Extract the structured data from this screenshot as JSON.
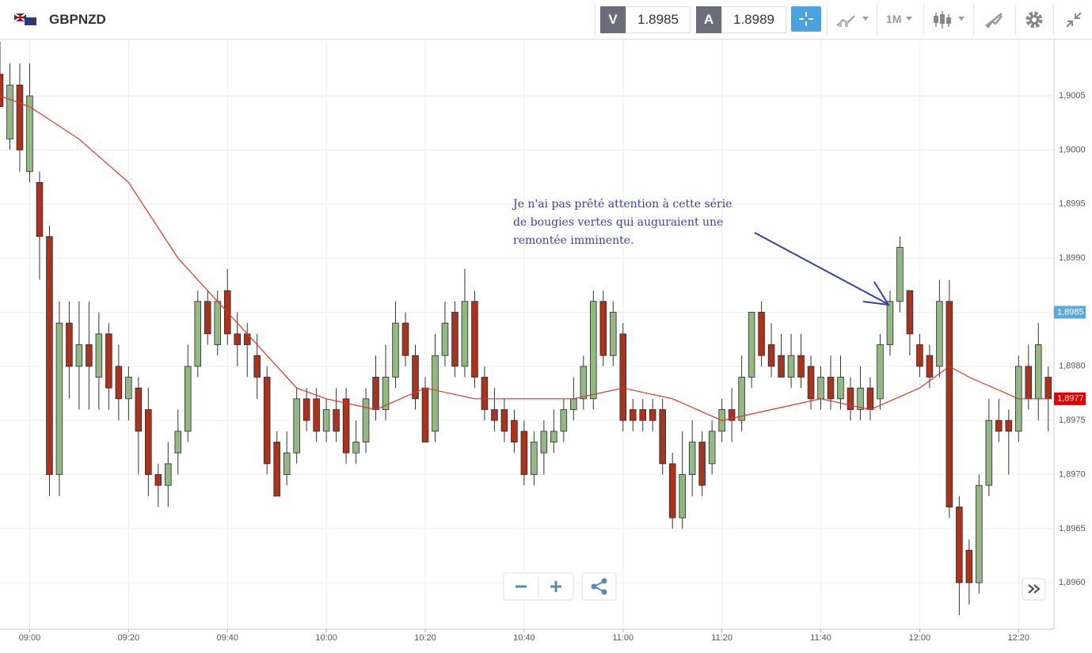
{
  "toolbar": {
    "symbol": "GBPNZD",
    "sell_label": "V",
    "sell_price": 1.8985,
    "buy_label": "A",
    "buy_price": 1.8989,
    "timeframe": "1M"
  },
  "chart_data": {
    "type": "candlestick",
    "x": [
      "08:54",
      "08:56",
      "08:58",
      "09:00",
      "09:02",
      "09:04",
      "09:06",
      "09:08",
      "09:10",
      "09:12",
      "09:14",
      "09:16",
      "09:18",
      "09:20",
      "09:22",
      "09:24",
      "09:26",
      "09:28",
      "09:30",
      "09:32",
      "09:34",
      "09:36",
      "09:38",
      "09:40",
      "09:42",
      "09:44",
      "09:46",
      "09:48",
      "09:50",
      "09:52",
      "09:54",
      "09:56",
      "09:58",
      "10:00",
      "10:02",
      "10:04",
      "10:06",
      "10:08",
      "10:10",
      "10:12",
      "10:14",
      "10:16",
      "10:18",
      "10:20",
      "10:22",
      "10:24",
      "10:26",
      "10:28",
      "10:30",
      "10:32",
      "10:34",
      "10:36",
      "10:38",
      "10:40",
      "10:42",
      "10:44",
      "10:46",
      "10:48",
      "10:50",
      "10:52",
      "10:54",
      "10:56",
      "10:58",
      "11:00",
      "11:02",
      "11:04",
      "11:06",
      "11:08",
      "11:10",
      "11:12",
      "11:14",
      "11:16",
      "11:18",
      "11:20",
      "11:22",
      "11:24",
      "11:26",
      "11:28",
      "11:30",
      "11:32",
      "11:34",
      "11:36",
      "11:38",
      "11:40",
      "11:42",
      "11:44",
      "11:46",
      "11:48",
      "11:50",
      "11:52",
      "11:54",
      "11:56",
      "11:58",
      "12:00",
      "12:02",
      "12:04",
      "12:06",
      "12:08",
      "12:10",
      "12:12",
      "12:14",
      "12:16",
      "12:18",
      "12:20",
      "12:22",
      "12:24",
      "12:26"
    ],
    "open": [
      1.9007,
      1.9001,
      1.9006,
      1.8998,
      1.8997,
      1.8992,
      1.897,
      1.8984,
      1.898,
      1.8982,
      1.8979,
      1.8983,
      1.898,
      1.8977,
      1.8978,
      1.8976,
      1.897,
      1.8969,
      1.8972,
      1.8974,
      1.898,
      1.8986,
      1.8982,
      1.8987,
      1.8983,
      1.8983,
      1.8981,
      1.8979,
      1.8973,
      1.897,
      1.8972,
      1.8977,
      1.8977,
      1.8974,
      1.8976,
      1.8977,
      1.8972,
      1.8973,
      1.8979,
      1.8976,
      1.8979,
      1.8984,
      1.8981,
      1.8978,
      1.8974,
      1.8981,
      1.8985,
      1.898,
      1.8986,
      1.8979,
      1.8976,
      1.8976,
      1.8975,
      1.8974,
      1.897,
      1.8972,
      1.8973,
      1.8974,
      1.8976,
      1.8977,
      1.8977,
      1.8986,
      1.8981,
      1.8983,
      1.8976,
      1.8976,
      1.8976,
      1.8976,
      1.8971,
      1.8966,
      1.897,
      1.8973,
      1.8971,
      1.8974,
      1.8976,
      1.8975,
      1.8979,
      1.8985,
      1.8982,
      1.8981,
      1.8979,
      1.8981,
      1.898,
      1.8977,
      1.8979,
      1.8977,
      1.8978,
      1.8976,
      1.8978,
      1.8977,
      1.8982,
      1.8986,
      1.8987,
      1.8982,
      1.8981,
      1.898,
      1.8986,
      1.8967,
      1.8963,
      1.896,
      1.8969,
      1.8975,
      1.8975,
      1.8974,
      1.898,
      1.8977,
      1.8979
    ],
    "high": [
      1.901,
      1.9008,
      1.9008,
      1.9008,
      1.8998,
      1.8993,
      1.8986,
      1.8986,
      1.8986,
      1.8986,
      1.8985,
      1.8984,
      1.8982,
      1.898,
      1.8979,
      1.8978,
      1.8971,
      1.8973,
      1.8976,
      1.8982,
      1.8987,
      1.8987,
      1.8987,
      1.8989,
      1.8985,
      1.8984,
      1.8983,
      1.898,
      1.8974,
      1.8974,
      1.8978,
      1.8978,
      1.8978,
      1.8977,
      1.8978,
      1.8978,
      1.8975,
      1.8978,
      1.8981,
      1.8982,
      1.8986,
      1.8985,
      1.8982,
      1.8979,
      1.8983,
      1.8986,
      1.8986,
      1.8989,
      1.8987,
      1.898,
      1.8978,
      1.8977,
      1.8976,
      1.8975,
      1.8974,
      1.8975,
      1.8976,
      1.8977,
      1.8979,
      1.8981,
      1.8987,
      1.8987,
      1.8986,
      1.8984,
      1.8977,
      1.8977,
      1.8977,
      1.8977,
      1.8972,
      1.8974,
      1.8975,
      1.8974,
      1.8975,
      1.8977,
      1.8978,
      1.8981,
      1.8985,
      1.8986,
      1.8984,
      1.8983,
      1.8983,
      1.8983,
      1.8981,
      1.898,
      1.8981,
      1.8981,
      1.8979,
      1.898,
      1.8979,
      1.8983,
      1.8987,
      1.8992,
      1.8987,
      1.8983,
      1.8982,
      1.8988,
      1.8988,
      1.8968,
      1.8964,
      1.897,
      1.8977,
      1.8977,
      1.8976,
      1.8981,
      1.8982,
      1.8984,
      1.898
    ],
    "low": [
      1.9004,
      1.9,
      1.8998,
      1.8997,
      1.8988,
      1.8968,
      1.8968,
      1.8977,
      1.8976,
      1.8976,
      1.8976,
      1.8976,
      1.8975,
      1.8975,
      1.897,
      1.8968,
      1.8967,
      1.8967,
      1.897,
      1.8973,
      1.8979,
      1.8982,
      1.8981,
      1.8982,
      1.898,
      1.8979,
      1.8977,
      1.897,
      1.8968,
      1.8969,
      1.8971,
      1.8974,
      1.8973,
      1.8973,
      1.8973,
      1.8971,
      1.8971,
      1.8972,
      1.8975,
      1.8975,
      1.8978,
      1.898,
      1.8976,
      1.8973,
      1.8973,
      1.898,
      1.8979,
      1.8979,
      1.8978,
      1.8975,
      1.8974,
      1.8973,
      1.8972,
      1.8969,
      1.8969,
      1.897,
      1.8972,
      1.8973,
      1.8975,
      1.8976,
      1.8976,
      1.898,
      1.898,
      1.8974,
      1.8974,
      1.8974,
      1.8974,
      1.897,
      1.8965,
      1.8965,
      1.8968,
      1.8968,
      1.897,
      1.8973,
      1.8973,
      1.8974,
      1.8978,
      1.898,
      1.8979,
      1.8979,
      1.8978,
      1.8978,
      1.8976,
      1.8976,
      1.8976,
      1.8976,
      1.8975,
      1.8975,
      1.8975,
      1.8976,
      1.8981,
      1.8985,
      1.8981,
      1.8979,
      1.8978,
      1.8979,
      1.8966,
      1.8957,
      1.8958,
      1.8959,
      1.8968,
      1.8973,
      1.897,
      1.8973,
      1.8976,
      1.8975,
      1.8974
    ],
    "close": [
      1.9004,
      1.9006,
      1.9,
      1.9005,
      1.8992,
      1.897,
      1.8984,
      1.898,
      1.8982,
      1.898,
      1.8983,
      1.8978,
      1.8977,
      1.8979,
      1.8974,
      1.897,
      1.8969,
      1.8971,
      1.8974,
      1.898,
      1.8986,
      1.8983,
      1.8986,
      1.8983,
      1.8982,
      1.8982,
      1.8979,
      1.8971,
      1.8968,
      1.8972,
      1.8977,
      1.8975,
      1.8974,
      1.8976,
      1.8974,
      1.8972,
      1.8973,
      1.8977,
      1.8976,
      1.8979,
      1.8984,
      1.8981,
      1.8977,
      1.8973,
      1.8981,
      1.8984,
      1.898,
      1.8986,
      1.8979,
      1.8976,
      1.8975,
      1.8974,
      1.8973,
      1.897,
      1.8973,
      1.8974,
      1.8974,
      1.8976,
      1.8977,
      1.898,
      1.8986,
      1.8981,
      1.8985,
      1.8975,
      1.8975,
      1.8975,
      1.8975,
      1.8971,
      1.8966,
      1.897,
      1.8973,
      1.8969,
      1.8974,
      1.8976,
      1.8975,
      1.8979,
      1.8985,
      1.8981,
      1.898,
      1.8979,
      1.8981,
      1.8979,
      1.8977,
      1.8979,
      1.8977,
      1.8979,
      1.8976,
      1.8978,
      1.8976,
      1.8982,
      1.8986,
      1.8991,
      1.8983,
      1.898,
      1.8979,
      1.8986,
      1.8967,
      1.896,
      1.896,
      1.8969,
      1.8975,
      1.8974,
      1.8974,
      1.898,
      1.8977,
      1.8982,
      1.8977
    ],
    "up_color": "#93b883",
    "down_color": "#a8331f",
    "moving_average": {
      "color": "#e0342a",
      "x": [
        "08:54",
        "09:00",
        "09:10",
        "09:20",
        "09:30",
        "09:40",
        "09:50",
        "09:54",
        "10:00",
        "10:10",
        "10:20",
        "10:30",
        "10:40",
        "10:50",
        "11:00",
        "11:10",
        "11:20",
        "11:30",
        "11:40",
        "11:50",
        "12:00",
        "12:06",
        "12:10",
        "12:20",
        "12:26"
      ],
      "values": [
        1.9005,
        1.9004,
        1.9001,
        1.8997,
        1.899,
        1.8985,
        1.898,
        1.8978,
        1.8977,
        1.8976,
        1.8978,
        1.8977,
        1.8977,
        1.8977,
        1.8978,
        1.8977,
        1.8975,
        1.8976,
        1.8977,
        1.8976,
        1.8978,
        1.898,
        1.8979,
        1.8977,
        1.8977
      ]
    },
    "xlim": [
      "08:54",
      "12:27"
    ],
    "xticks": [
      "09:00",
      "09:20",
      "09:40",
      "10:00",
      "10:20",
      "10:40",
      "11:00",
      "11:20",
      "11:40",
      "12:00",
      "12:20"
    ],
    "ylim": [
      1.89557,
      1.90102
    ],
    "yticks": [
      {
        "value": 1.896,
        "label": "1,8960"
      },
      {
        "value": 1.8965,
        "label": "1,8965"
      },
      {
        "value": 1.897,
        "label": "1,8970"
      },
      {
        "value": 1.8975,
        "label": "1,8975"
      },
      {
        "value": 1.898,
        "label": "1,8980"
      },
      {
        "value": 1.8985,
        "label": "1,8985"
      },
      {
        "value": 1.899,
        "label": "1,8990"
      },
      {
        "value": 1.8995,
        "label": "1,8995"
      },
      {
        "value": 1.9,
        "label": "1,9000"
      },
      {
        "value": 1.9005,
        "label": "1,9005"
      }
    ],
    "grid": true,
    "price_markers": [
      {
        "value": 1.8985,
        "label": "1,8985",
        "color": "#5aa9dc"
      },
      {
        "value": 1.8977,
        "label": "1,8977",
        "color": "#e30000"
      }
    ],
    "annotation": {
      "lines": [
        "Je n'ai pas prêté attention à cette série",
        "de bougies vertes qui auguraient une",
        "remontée imminente."
      ],
      "color": "#3b3fa5"
    }
  }
}
